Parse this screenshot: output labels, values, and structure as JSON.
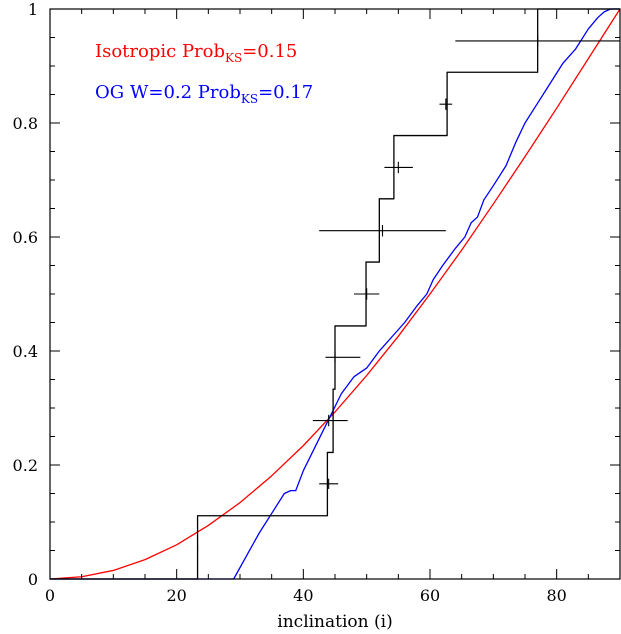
{
  "chart_data": {
    "type": "line",
    "xlabel": "inclination (i)",
    "ylabel": "",
    "xlim": [
      0,
      90
    ],
    "ylim": [
      0,
      1
    ],
    "xticks": [
      0,
      20,
      40,
      60,
      80
    ],
    "yticks": [
      0,
      0.2,
      0.4,
      0.6,
      0.8,
      1
    ],
    "grid": false,
    "legend": [
      {
        "prefix": "Isotropic Prob",
        "sub": "KS",
        "suffix": "=0.15",
        "color": "#ff0000"
      },
      {
        "prefix": "OG W=0.2 Prob",
        "sub": "KS",
        "suffix": "=0.17",
        "color": "#0000ff"
      }
    ],
    "series": [
      {
        "kind": "curve",
        "color": "#ff0000",
        "x": [
          0,
          5,
          10,
          15,
          20,
          25,
          30,
          35,
          40,
          45,
          50,
          55,
          60,
          65,
          70,
          75,
          80,
          85,
          90
        ],
        "y": [
          0,
          0.004,
          0.015,
          0.034,
          0.06,
          0.094,
          0.134,
          0.181,
          0.234,
          0.293,
          0.357,
          0.426,
          0.5,
          0.577,
          0.658,
          0.741,
          0.826,
          0.913,
          1.0
        ]
      },
      {
        "kind": "curve",
        "color": "#0000ff",
        "x": [
          0,
          29,
          31,
          33,
          35,
          37,
          38,
          38.8,
          40,
          42,
          44,
          46,
          48,
          50,
          52,
          54,
          56,
          58,
          59.5,
          60.5,
          62,
          64,
          65.5,
          66.5,
          67.5,
          68.5,
          70,
          72,
          73.5,
          75,
          77,
          79,
          81,
          83,
          85,
          86.5,
          87.5,
          88.5,
          90
        ],
        "y": [
          0,
          0,
          0.04,
          0.08,
          0.115,
          0.15,
          0.155,
          0.155,
          0.19,
          0.235,
          0.28,
          0.325,
          0.355,
          0.37,
          0.4,
          0.425,
          0.45,
          0.48,
          0.5,
          0.525,
          0.55,
          0.58,
          0.6,
          0.625,
          0.635,
          0.665,
          0.69,
          0.725,
          0.765,
          0.8,
          0.835,
          0.87,
          0.905,
          0.93,
          0.965,
          0.985,
          0.995,
          1.0,
          1.0
        ]
      },
      {
        "kind": "step",
        "color": "#000000",
        "x": [
          0,
          23.3,
          23.3,
          43.8,
          43.8,
          44.7,
          44.7,
          45,
          45,
          49.9,
          49.9,
          52,
          52,
          54.3,
          54.3,
          62.7,
          62.7,
          77,
          77,
          90
        ],
        "y": [
          0,
          0,
          0.111,
          0.111,
          0.222,
          0.222,
          0.333,
          0.333,
          0.444,
          0.444,
          0.556,
          0.556,
          0.667,
          0.667,
          0.778,
          0.778,
          0.889,
          0.889,
          1.0,
          1.0
        ]
      }
    ],
    "error_bars": [
      {
        "x": 23.3,
        "y": 0.055,
        "xerr": [
          23.3,
          23.3
        ],
        "yerr": [
          0.05,
          0.06
        ]
      },
      {
        "x": 44.0,
        "y": 0.167,
        "xerr": [
          42.5,
          45.5
        ],
        "yerr": [
          0.158,
          0.176
        ]
      },
      {
        "x": 44.0,
        "y": 0.278,
        "xerr": [
          41.5,
          47.0
        ],
        "yerr": [
          0.268,
          0.288
        ]
      },
      {
        "x": 45.0,
        "y": 0.389,
        "xerr": [
          43.5,
          49.0
        ],
        "yerr": [
          0.379,
          0.399
        ]
      },
      {
        "x": 50.0,
        "y": 0.5,
        "xerr": [
          48.0,
          52.0
        ],
        "yerr": [
          0.49,
          0.51
        ]
      },
      {
        "x": 52.5,
        "y": 0.611,
        "xerr": [
          42.5,
          62.5
        ],
        "yerr": [
          0.601,
          0.621
        ]
      },
      {
        "x": 55.0,
        "y": 0.722,
        "xerr": [
          52.8,
          57.3
        ],
        "yerr": [
          0.712,
          0.732
        ]
      },
      {
        "x": 62.5,
        "y": 0.833,
        "xerr": [
          61.5,
          63.5
        ],
        "yerr": [
          0.823,
          0.843
        ]
      },
      {
        "x": 77.0,
        "y": 0.944,
        "xerr": [
          64.0,
          90.0
        ],
        "yerr": [
          0.934,
          0.954
        ]
      }
    ]
  }
}
